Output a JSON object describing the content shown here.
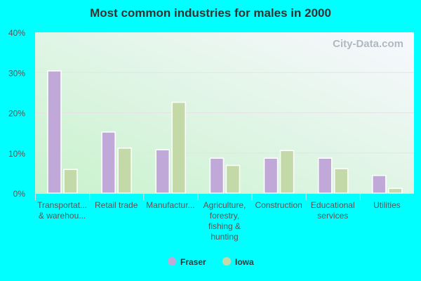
{
  "chart_data": {
    "type": "bar",
    "title": "Most common industries for males in 2000",
    "categories": [
      [
        "Transportat...",
        "& warehou..."
      ],
      [
        "Retail trade"
      ],
      [
        "Manufactur..."
      ],
      [
        "Agriculture,",
        "forestry,",
        "fishing &",
        "hunting"
      ],
      [
        "Construction"
      ],
      [
        "Educational",
        "services"
      ],
      [
        "Utilities"
      ]
    ],
    "series": [
      {
        "name": "Fraser",
        "color": "#c0a8d8",
        "values": [
          30.4,
          15.2,
          10.8,
          8.7,
          8.7,
          8.7,
          4.4
        ]
      },
      {
        "name": "Iowa",
        "color": "#c4d9a8",
        "values": [
          5.9,
          11.2,
          22.6,
          6.9,
          10.6,
          6.1,
          1.2
        ]
      }
    ],
    "yticks": [
      "0%",
      "10%",
      "20%",
      "30%",
      "40%"
    ],
    "ylim": [
      0,
      40
    ],
    "grid": true,
    "legend": "bottom",
    "watermark": "City-Data.com"
  }
}
